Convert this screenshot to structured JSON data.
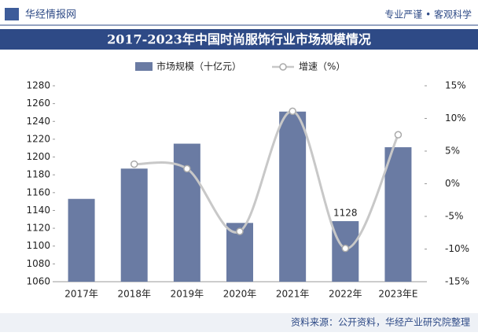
{
  "header": {
    "brand": "华经情报网",
    "slogan": "专业严谨 • 客观科学"
  },
  "source": "资料来源：公开资料，华经产业研究院整理",
  "chart_data": {
    "type": "bar_line",
    "title": "2017-2023年中国时尚服饰行业市场规模情况",
    "categories": [
      "2017年",
      "2018年",
      "2019年",
      "2020年",
      "2021年",
      "2022年",
      "2023年E"
    ],
    "series": [
      {
        "name": "市场规模（十亿元）",
        "color": "#6a7ba3",
        "values": [
          1153,
          1187,
          1215,
          1126,
          1251,
          1128,
          1211
        ],
        "value_labels": [
          null,
          null,
          null,
          null,
          null,
          "1128",
          null
        ]
      },
      {
        "name": "增速（%）",
        "color": "#c8c8c8",
        "axis": "y2",
        "values": [
          null,
          3.0,
          2.3,
          -7.3,
          11.1,
          -9.9,
          7.5
        ]
      }
    ],
    "ylim": [
      1060,
      1280
    ],
    "yticks": [
      1060,
      1080,
      1100,
      1120,
      1140,
      1160,
      1180,
      1200,
      1220,
      1240,
      1260,
      1280
    ],
    "y2lim": [
      -15,
      15
    ],
    "y2ticks": [
      {
        "value": -15,
        "label": "-15%"
      },
      {
        "value": -10,
        "label": "-10%"
      },
      {
        "value": -5,
        "label": "-5%"
      },
      {
        "value": 0,
        "label": "0%"
      },
      {
        "value": 5,
        "label": "5%"
      },
      {
        "value": 10,
        "label": "10%"
      },
      {
        "value": 15,
        "label": "15%"
      }
    ],
    "grid": false
  }
}
